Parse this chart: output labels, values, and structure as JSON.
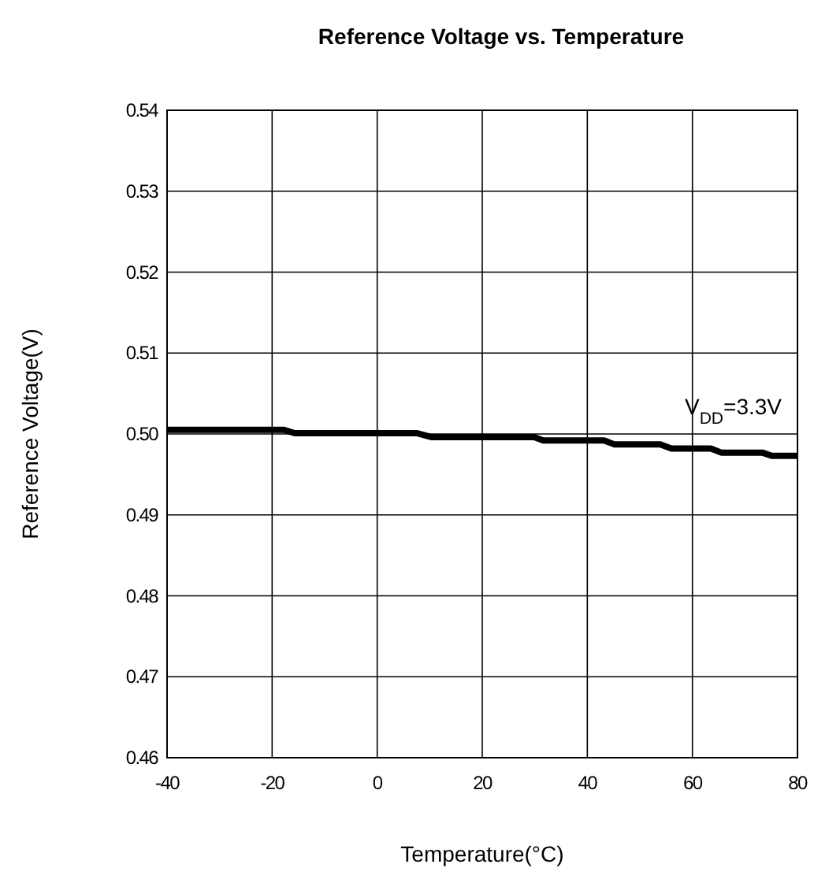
{
  "chart_data": {
    "type": "line",
    "title": "Reference Voltage vs. Temperature",
    "xlabel": "Temperature(°C)",
    "ylabel": "Reference Voltage(V)",
    "annotations": [
      "V$_{DD}$=3.3V"
    ],
    "xlim": [
      -40,
      80
    ],
    "xticks": [
      -40,
      -20,
      0,
      20,
      40,
      60,
      80
    ],
    "ylim": [
      0.46,
      0.54
    ],
    "yticks": [
      {
        "value": 0.46,
        "label": "0.46"
      },
      {
        "value": 0.47,
        "label": "0.47"
      },
      {
        "value": 0.48,
        "label": "0.48"
      },
      {
        "value": 0.49,
        "label": "0.49"
      },
      {
        "value": 0.5,
        "label": "0.50"
      },
      {
        "value": 0.51,
        "label": "0.51"
      },
      {
        "value": 0.52,
        "label": "0.52"
      },
      {
        "value": 0.53,
        "label": "0.53"
      },
      {
        "value": 0.54,
        "label": "0.54"
      }
    ],
    "grid": true,
    "series": [
      {
        "color": "#000000",
        "x": [
          -40,
          -17.7,
          -15.7,
          7.5,
          10.4,
          29.9,
          31.6,
          43.2,
          45.2,
          53.9,
          56,
          63.5,
          65.5,
          73.3,
          75.1,
          80
        ],
        "values": [
          0.5005,
          0.5005,
          0.5001,
          0.5001,
          0.4996,
          0.4996,
          0.4992,
          0.4992,
          0.4987,
          0.4987,
          0.4982,
          0.4982,
          0.4977,
          0.4977,
          0.4973,
          0.4973
        ]
      }
    ]
  }
}
